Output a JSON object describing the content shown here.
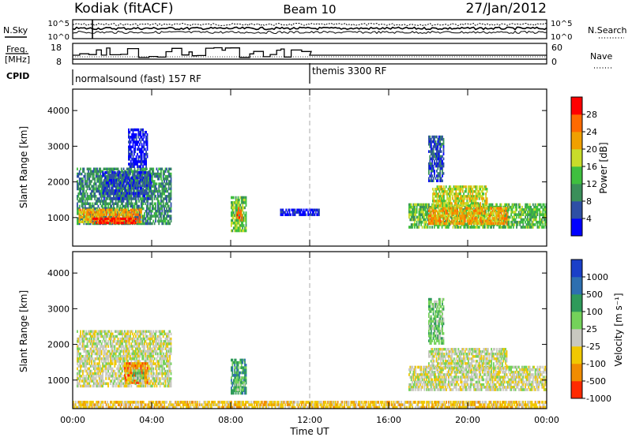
{
  "header": {
    "station": "Kodiak (fitACF)",
    "beam": "Beam 10",
    "date": "27/Jan/2012"
  },
  "top_panels": {
    "nsky_label": "N.Sky",
    "nsky_ticks": [
      "10^5",
      "10^0"
    ],
    "nsearch_label": "N.Search",
    "nsearch_ticks": [
      "10^5",
      "10^0"
    ],
    "freq_label": "Freq.",
    "freq_unit": "[MHz]",
    "freq_ticks": [
      "18",
      "8"
    ],
    "nave_label": "Nave",
    "nave_ticks": [
      "60",
      "0"
    ],
    "cpid_label": "CPID",
    "cpid_segments": [
      {
        "label": "normalsound (fast) 157 RF",
        "start_hour": 1.0
      },
      {
        "label": "themis 3300 RF",
        "start_hour": 12.0
      }
    ]
  },
  "chart_data": [
    {
      "type": "heatmap",
      "name": "power",
      "ylabel": "Slant Range [km]",
      "xlabel": "",
      "x_ticks": [
        "00:00",
        "04:00",
        "08:00",
        "12:00",
        "16:00",
        "20:00",
        "00:00"
      ],
      "y_ticks": [
        "1000",
        "2000",
        "3000",
        "4000"
      ],
      "xlim": [
        0,
        24
      ],
      "ylim": [
        200,
        4600
      ],
      "colorbar_label": "Power [dB]",
      "colorbar_ticks": [
        "4",
        "8",
        "12",
        "16",
        "20",
        "24",
        "28"
      ],
      "colorbar_colors": [
        "#0000ff",
        "#2e4fa5",
        "#3a8f5a",
        "#3fbf3f",
        "#c8dc2a",
        "#f0a000",
        "#ff6a00",
        "#ff0000"
      ],
      "regions": [
        {
          "t0": 0.2,
          "t1": 5.0,
          "r0": 800,
          "r1": 2400,
          "level": 2
        },
        {
          "t0": 0.3,
          "t1": 3.5,
          "r0": 850,
          "r1": 1250,
          "level": 5
        },
        {
          "t0": 1.0,
          "t1": 3.2,
          "r0": 820,
          "r1": 1000,
          "level": 7
        },
        {
          "t0": 1.5,
          "t1": 4.0,
          "r0": 1500,
          "r1": 2300,
          "level": 1
        },
        {
          "t0": 2.8,
          "t1": 3.8,
          "r0": 2400,
          "r1": 3500,
          "level": 0
        },
        {
          "t0": 8.0,
          "t1": 8.8,
          "r0": 600,
          "r1": 1600,
          "level": 3
        },
        {
          "t0": 8.3,
          "t1": 8.6,
          "r0": 900,
          "r1": 1300,
          "level": 6
        },
        {
          "t0": 10.5,
          "t1": 12.5,
          "r0": 1050,
          "r1": 1250,
          "level": 0
        },
        {
          "t0": 17.0,
          "t1": 24.0,
          "r0": 700,
          "r1": 1400,
          "level": 3
        },
        {
          "t0": 18.0,
          "t1": 22.0,
          "r0": 800,
          "r1": 1300,
          "level": 5
        },
        {
          "t0": 18.2,
          "t1": 21.0,
          "r0": 1300,
          "r1": 1900,
          "level": 4
        },
        {
          "t0": 18.0,
          "t1": 18.8,
          "r0": 2000,
          "r1": 3300,
          "level": 1
        }
      ]
    },
    {
      "type": "heatmap",
      "name": "velocity",
      "ylabel": "Slant Range [km]",
      "xlabel": "Time UT",
      "x_ticks": [
        "00:00",
        "04:00",
        "08:00",
        "12:00",
        "16:00",
        "20:00",
        "00:00"
      ],
      "y_ticks": [
        "1000",
        "2000",
        "3000",
        "4000"
      ],
      "xlim": [
        0,
        24
      ],
      "ylim": [
        200,
        4600
      ],
      "colorbar_label": "Velocity [m s⁻¹]",
      "colorbar_ticks": [
        "1000",
        "500",
        "100",
        "25",
        "-25",
        "-100",
        "-500",
        "-1000"
      ],
      "colorbar_colors": [
        "#1a3fc8",
        "#2e6fb0",
        "#2f9a5a",
        "#74d25a",
        "#c8c8c0",
        "#f0c800",
        "#f08c00",
        "#ff2a00"
      ],
      "regions": [
        {
          "t0": 0.2,
          "t1": 5.0,
          "r0": 800,
          "r1": 2400,
          "level": 4
        },
        {
          "t0": 2.6,
          "t1": 3.8,
          "r0": 900,
          "r1": 1500,
          "level": 6
        },
        {
          "t0": 3.0,
          "t1": 3.6,
          "r0": 950,
          "r1": 1300,
          "level": 3
        },
        {
          "t0": 8.0,
          "t1": 8.8,
          "r0": 600,
          "r1": 1600,
          "level": 2
        },
        {
          "t0": 8.2,
          "t1": 8.7,
          "r0": 700,
          "r1": 1100,
          "level": 3
        },
        {
          "t0": 17.0,
          "t1": 24.0,
          "r0": 700,
          "r1": 1400,
          "level": 4
        },
        {
          "t0": 18.0,
          "t1": 22.0,
          "r0": 1300,
          "r1": 1900,
          "level": 4
        },
        {
          "t0": 18.0,
          "t1": 18.8,
          "r0": 2000,
          "r1": 3300,
          "level": 3
        },
        {
          "t0": 0.0,
          "t1": 24.0,
          "r0": 200,
          "r1": 420,
          "level": 5
        }
      ]
    }
  ]
}
